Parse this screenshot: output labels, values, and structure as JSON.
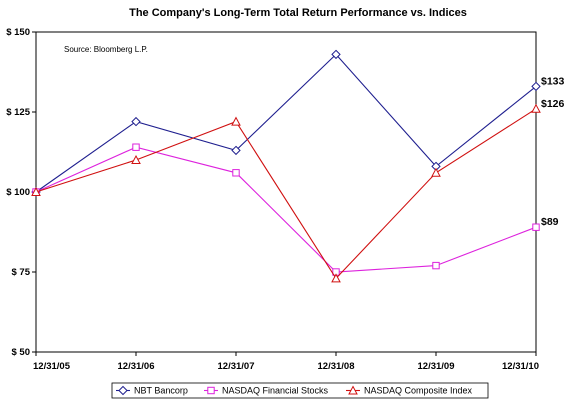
{
  "chart_data": {
    "type": "line",
    "title": "The Company's Long-Term Total Return Performance vs. Indices",
    "source_note": "Source: Bloomberg L.P.",
    "categories": [
      "12/31/05",
      "12/31/06",
      "12/31/07",
      "12/31/08",
      "12/31/09",
      "12/31/10"
    ],
    "ylim": [
      50,
      150
    ],
    "yticks": [
      50,
      75,
      100,
      125,
      150
    ],
    "ytick_labels": [
      "$ 50",
      "$ 75",
      "$ 100",
      "$ 125",
      "$ 150"
    ],
    "grid": false,
    "legend_position": "bottom",
    "series": [
      {
        "name": "NBT Bancorp",
        "color": "#1f1f8f",
        "marker": "diamond",
        "values": [
          100,
          122,
          113,
          143,
          108,
          133
        ],
        "end_label": "$133"
      },
      {
        "name": "NASDAQ Financial Stocks",
        "color": "#dd22dd",
        "marker": "square",
        "values": [
          100,
          114,
          106,
          75,
          77,
          89
        ],
        "end_label": "$89"
      },
      {
        "name": "NASDAQ Composite Index",
        "color": "#d01010",
        "marker": "triangle",
        "values": [
          100,
          110,
          122,
          73,
          106,
          126
        ],
        "end_label": "$126"
      }
    ]
  }
}
